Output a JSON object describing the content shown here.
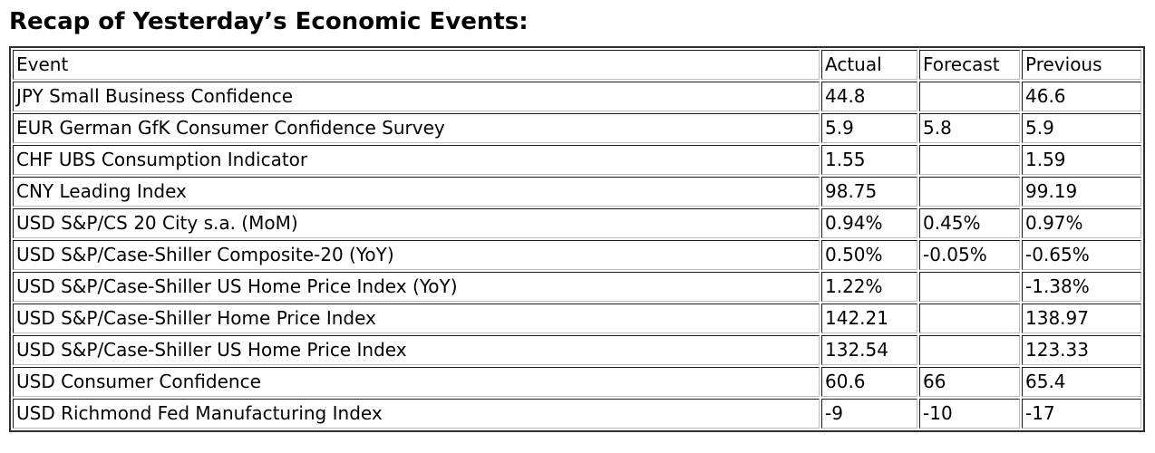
{
  "page": {
    "title": "Recap of Yesterday’s Economic Events:"
  },
  "chart_data": {
    "type": "table",
    "title": "Recap of Yesterday’s Economic Events:",
    "columns": [
      "Event",
      "Actual",
      "Forecast",
      "Previous"
    ],
    "rows": [
      [
        "JPY Small Business Confidence",
        "44.8",
        "",
        "46.6"
      ],
      [
        "EUR German GfK Consumer Confidence Survey",
        "5.9",
        "5.8",
        "5.9"
      ],
      [
        "CHF UBS Consumption Indicator",
        "1.55",
        "",
        "1.59"
      ],
      [
        "CNY Leading Index",
        "98.75",
        "",
        "99.19"
      ],
      [
        "USD S&P/CS 20 City s.a. (MoM)",
        "0.94%",
        "0.45%",
        "0.97%"
      ],
      [
        "USD S&P/Case-Shiller Composite-20 (YoY)",
        "0.50%",
        "-0.05%",
        "-0.65%"
      ],
      [
        "USD S&P/Case-Shiller US Home Price Index (YoY)",
        "1.22%",
        "",
        "-1.38%"
      ],
      [
        "USD S&P/Case-Shiller Home Price Index",
        "142.21",
        "",
        "138.97"
      ],
      [
        "USD S&P/Case-Shiller US Home Price Index",
        "132.54",
        "",
        "123.33"
      ],
      [
        "USD Consumer Confidence",
        "60.6",
        "66",
        "65.4"
      ],
      [
        "USD Richmond Fed Manufacturing Index",
        "-9",
        "-10",
        "-17"
      ]
    ]
  },
  "colors": {
    "text": "#000000",
    "background": "#ffffff",
    "border_outer": "#2f2f2f",
    "border_cell_dark": "#1a1a1a",
    "border_cell_light": "#bdbdbd"
  }
}
